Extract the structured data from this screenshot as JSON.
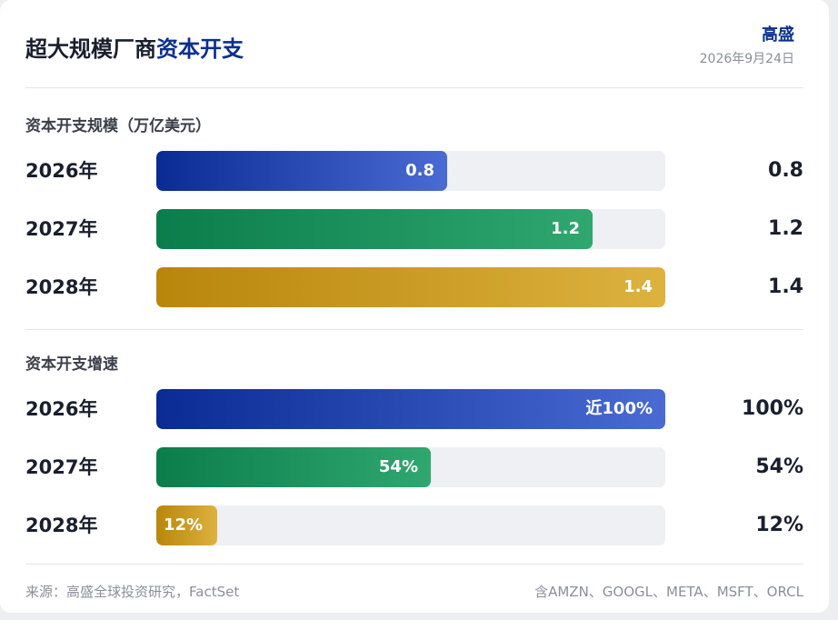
{
  "header": {
    "title_main": "超大规模厂商",
    "title_highlight": "资本开支",
    "brand": "高盛",
    "date": "2026年9月24日"
  },
  "chart_data": [
    {
      "type": "bar",
      "orientation": "horizontal",
      "title": "资本开支规模（万亿美元）",
      "categories": [
        "2026年",
        "2027年",
        "2028年"
      ],
      "values": [
        0.8,
        1.2,
        1.4
      ],
      "value_labels": [
        "0.8",
        "1.2",
        "1.4"
      ],
      "bar_labels": [
        "0.8",
        "1.2",
        "1.4"
      ],
      "xlim": [
        0,
        1.4
      ],
      "colors": [
        "#0a2a94",
        "#0b7d4c",
        "#b8860b"
      ],
      "grid": false,
      "legend": "none"
    },
    {
      "type": "bar",
      "orientation": "horizontal",
      "title": "资本开支增速",
      "categories": [
        "2026年",
        "2027年",
        "2028年"
      ],
      "values": [
        100,
        54,
        12
      ],
      "value_labels": [
        "100%",
        "54%",
        "12%"
      ],
      "bar_labels": [
        "近100%",
        "54%",
        "12%"
      ],
      "xlim": [
        0,
        100
      ],
      "colors": [
        "#0a2a94",
        "#0b7d4c",
        "#b8860b"
      ],
      "grid": false,
      "legend": "none"
    }
  ],
  "footer": {
    "source": "来源：高盛全球投资研究，FactSet",
    "note": "含AMZN、GOOGL、META、MSFT、ORCL"
  }
}
